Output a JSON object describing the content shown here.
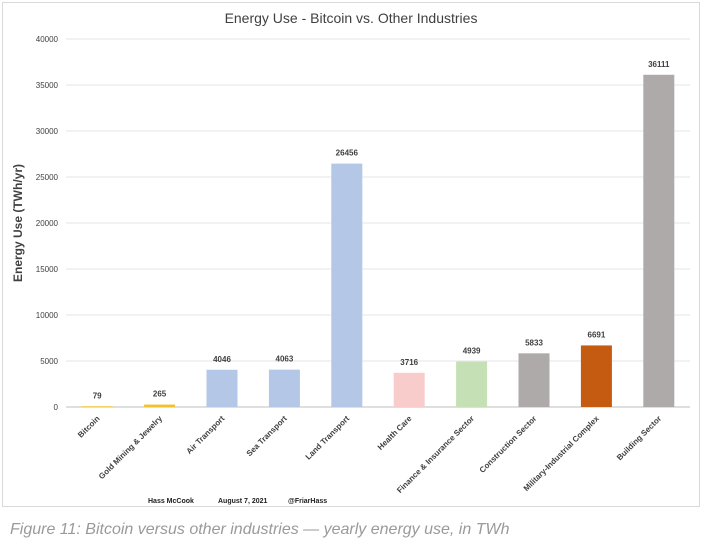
{
  "chart_data": {
    "type": "bar",
    "title": "Energy Use - Bitcoin vs. Other Industries",
    "xlabel": "",
    "ylabel": "Energy Use (TWh/yr)",
    "ylim": [
      0,
      40000
    ],
    "yticks": [
      0,
      5000,
      10000,
      15000,
      20000,
      25000,
      30000,
      35000,
      40000
    ],
    "grid": true,
    "categories": [
      "Bitcoin",
      "Gold Mining & Jewelry",
      "Air Transport",
      "Sea Transport",
      "Land Transport",
      "Health Care",
      "Finance & Insurance Sector",
      "Construction Sector",
      "Military-Industrial Complex",
      "Building Sector"
    ],
    "values": [
      79,
      265,
      4046,
      4063,
      26456,
      3716,
      4939,
      5833,
      6691,
      36111
    ],
    "colors": [
      "#f2c12e",
      "#f2c12e",
      "#b4c7e7",
      "#b4c7e7",
      "#b4c7e7",
      "#f9cccc",
      "#c5e0b4",
      "#aeaaaa",
      "#c55a11",
      "#aeaaaa"
    ]
  },
  "credits": {
    "author": "Hass McCook",
    "date": "August 7, 2021",
    "handle": "@FriarHass"
  },
  "caption": "Figure 11: Bitcoin versus other industries — yearly energy use, in TWh"
}
